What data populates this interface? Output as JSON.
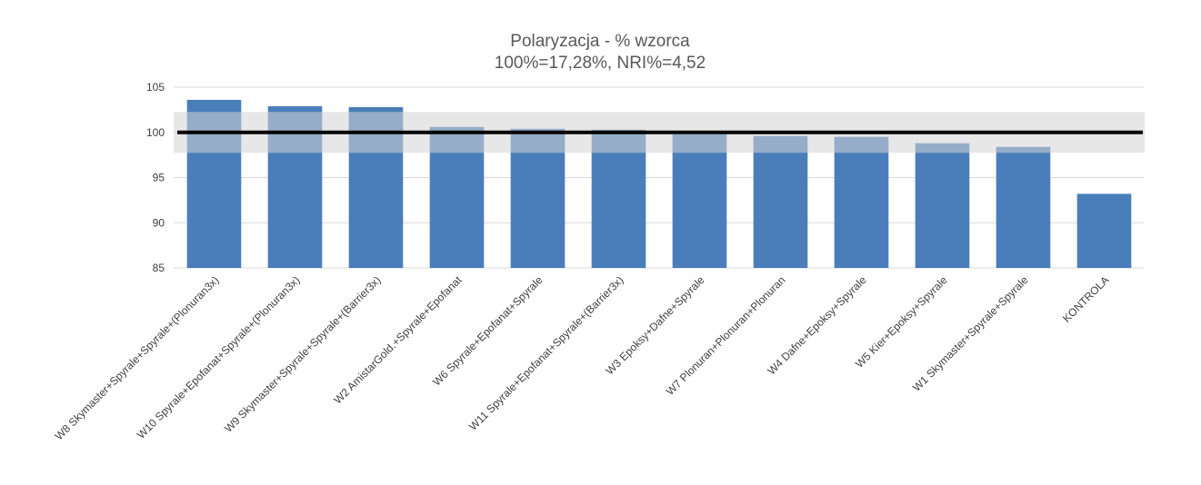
{
  "chart_data": {
    "type": "bar",
    "title": "Polaryzacja - % wzorca",
    "subtitle": "100%=17,28%, NRI%=4,52",
    "categories": [
      "W8 Skymaster+Spyrale+Spyrale+(Plonuran3x)",
      "W10 Spyrale+Epofanat+Spyrale+(Plonuran3x)",
      "W9 Skymaster+Spyrale+Spyrale+(Barrier3x)",
      "W2 AmistarGold.+Spyrale+Epofanat",
      "W6 Spyrale+Epofanat+Spyrale",
      "W11 Spyrale+Epofanat+Spyrale+(Barrier3x)",
      "W3 Epoksy+Dafne+Spyrale",
      "W7 Plonuran+Plonuran+Plonuran",
      "W4 Dafne+Epoksy+Spyrale",
      "W5 Kier+Epoksy+Spyrale",
      "W1 Skymaster+Spyrale+Spyrale",
      "KONTROLA"
    ],
    "values": [
      103.6,
      102.9,
      102.8,
      100.6,
      100.4,
      100.3,
      99.8,
      99.6,
      99.5,
      98.8,
      98.4,
      93.2
    ],
    "ylim": [
      85,
      105
    ],
    "yticks": [
      "85",
      "90",
      "95",
      "100",
      "105"
    ],
    "reference_line": 100,
    "nri_band": [
      97.74,
      102.26
    ],
    "grid": true,
    "legend": "none",
    "colors": {
      "bar": "#4a7ebb",
      "band": "#d3d3d3",
      "line": "#000000",
      "grid": "#d9d9d9"
    }
  }
}
